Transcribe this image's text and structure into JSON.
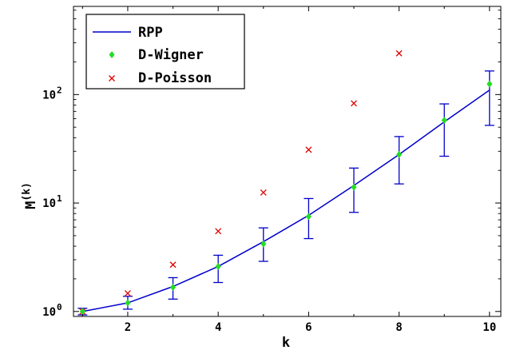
{
  "chart_data": {
    "type": "line",
    "title": "",
    "xlabel": "k",
    "ylabel_main": "M",
    "ylabel_sup": "(k)",
    "xlim": [
      0.8,
      10.25
    ],
    "ylim": [
      0.9,
      650
    ],
    "y_scale": "log",
    "grid": false,
    "legend_position": "top-left",
    "x_ticks": [
      2,
      4,
      6,
      8,
      10
    ],
    "x_tick_labels": [
      "2",
      "4",
      "6",
      "8",
      "10"
    ],
    "y_ticks": [
      1,
      10,
      100
    ],
    "y_tick_labels": [
      {
        "base": "10",
        "exp": "0"
      },
      {
        "base": "10",
        "exp": "1"
      },
      {
        "base": "10",
        "exp": "2"
      }
    ],
    "series": [
      {
        "name": "RPP",
        "kind": "line",
        "color": "#0000cc",
        "x": [
          1,
          2,
          3,
          4,
          5,
          6,
          7,
          8,
          9,
          10
        ],
        "y": [
          1.0,
          1.2,
          1.7,
          2.6,
          4.4,
          7.7,
          14.5,
          28,
          56,
          110
        ]
      },
      {
        "name": "D-Wigner",
        "kind": "markers-errorbars",
        "color": "#22dd22",
        "marker": "diamond",
        "errorbar_color": "#0000cc",
        "x": [
          1,
          2,
          3,
          4,
          5,
          6,
          7,
          8,
          9,
          10
        ],
        "y": [
          1.0,
          1.2,
          1.67,
          2.6,
          4.2,
          7.5,
          14,
          28,
          58,
          125
        ],
        "err_low": [
          0.93,
          1.05,
          1.3,
          1.85,
          2.9,
          4.7,
          8.2,
          15,
          27,
          52
        ],
        "err_high": [
          1.07,
          1.38,
          2.05,
          3.3,
          5.9,
          11,
          21,
          41,
          82,
          165
        ]
      },
      {
        "name": "D-Poisson",
        "kind": "markers",
        "color": "#dd0000",
        "marker": "x",
        "x": [
          1,
          2,
          3,
          4,
          5,
          6,
          7,
          8
        ],
        "y": [
          1.0,
          1.47,
          2.7,
          5.5,
          12.5,
          31,
          83,
          240
        ]
      }
    ]
  }
}
